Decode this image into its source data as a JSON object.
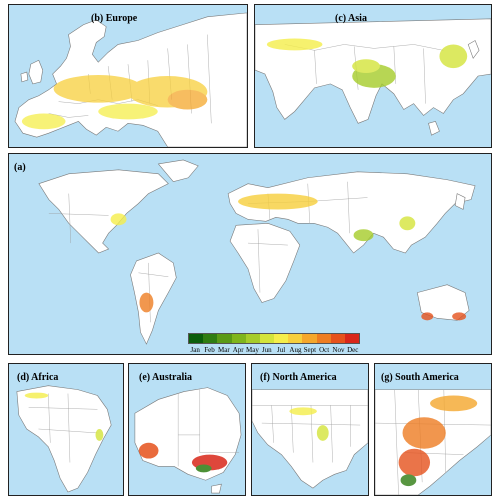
{
  "panels": {
    "b": {
      "label": "(b) Europe"
    },
    "c": {
      "label": "(c) Asia"
    },
    "a": {
      "label": "(a)"
    },
    "d": {
      "label": "(d) Africa"
    },
    "e": {
      "label": "(e) Australia"
    },
    "f": {
      "label": "(f) North America"
    },
    "g": {
      "label": "(g) South America"
    }
  },
  "legend": {
    "months": [
      "Jan",
      "Feb",
      "Mar",
      "Apr",
      "May",
      "Jun",
      "Jul",
      "Aug",
      "Sept",
      "Oct",
      "Nov",
      "Dec"
    ],
    "colors": [
      "#0b5e0b",
      "#2f7d12",
      "#5a9a16",
      "#7fb51c",
      "#a6cc2a",
      "#d4e43a",
      "#f5ee4a",
      "#f7cf3c",
      "#f5a72c",
      "#ee7d22",
      "#e6521c",
      "#d9271a"
    ]
  },
  "colors": {
    "ocean": "#b9e0f5",
    "land": "#ffffff",
    "border": "#7a7a7a"
  }
}
